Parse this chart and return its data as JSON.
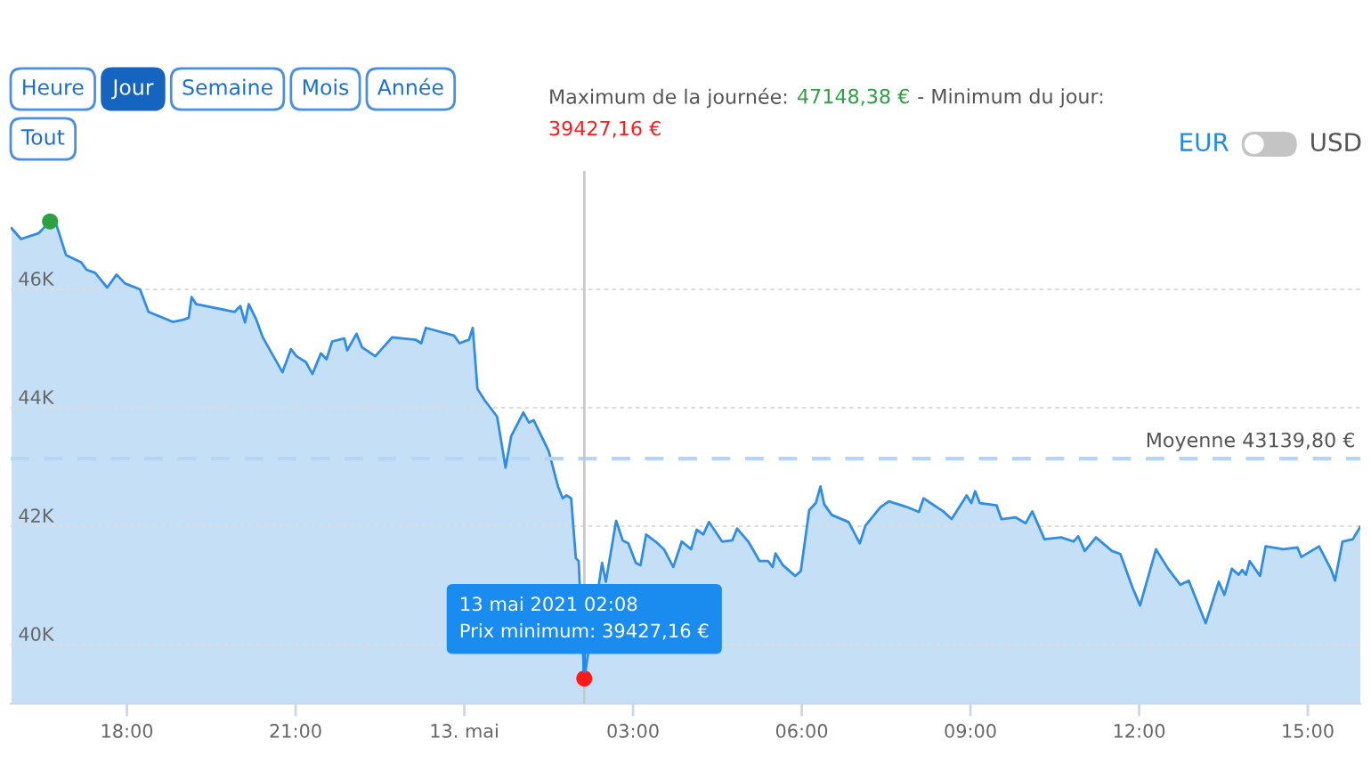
{
  "chart_data": {
    "type": "area",
    "annotations": [
      "Heure",
      "Jour",
      "Semaine",
      "Mois",
      "Année",
      "Tout",
      "Maximum de la journée:",
      "47148,38 €",
      "- Minimum du jour:",
      "39427,16 €",
      "EUR",
      "USD",
      {
        "text": "13 mai 2021 02:08\nPrix minimum: 39427,16 €",
        "x": "2021-05-13T02:08",
        "y": 39427.16
      }
    ],
    "xlim": [
      "2021-05-12T15:56",
      "2021-05-13T15:56"
    ],
    "xticks": [
      {
        "value": "2021-05-12T18:00",
        "label": "18:00"
      },
      {
        "value": "2021-05-12T21:00",
        "label": "21:00"
      },
      {
        "value": "2021-05-13T00:00",
        "label": "13. mai"
      },
      {
        "value": "2021-05-13T03:00",
        "label": "03:00"
      },
      {
        "value": "2021-05-13T06:00",
        "label": "06:00"
      },
      {
        "value": "2021-05-13T09:00",
        "label": "09:00"
      },
      {
        "value": "2021-05-13T12:00",
        "label": "12:00"
      },
      {
        "value": "2021-05-13T15:00",
        "label": "15:00"
      }
    ],
    "ylim": [
      39000,
      48000
    ],
    "yticks": [
      {
        "value": 40000,
        "label": "40K"
      },
      {
        "value": 42000,
        "label": "42K"
      },
      {
        "value": 44000,
        "label": "44K"
      },
      {
        "value": 46000,
        "label": "46K"
      }
    ],
    "grid": "y",
    "ref_lines": [
      {
        "axis": "y",
        "value": 43139.8,
        "label": "Moyenne 43139,80 €",
        "color": "#b5d5f7",
        "line_style": "dashed"
      },
      {
        "axis": "x",
        "value": "2021-05-13T02:08",
        "color": "#c8c8c8"
      }
    ],
    "series": [
      {
        "color": "#2f8de4",
        "x": [
          "2021-05-12T15:57",
          "2021-05-12T16:07",
          "2021-05-12T16:26",
          "2021-05-12T16:38",
          "2021-05-12T16:45",
          "2021-05-12T16:55",
          "2021-05-12T17:11",
          "2021-05-12T17:17",
          "2021-05-12T17:26",
          "2021-05-12T17:39",
          "2021-05-12T17:49",
          "2021-05-12T17:58",
          "2021-05-12T18:14",
          "2021-05-12T18:23",
          "2021-05-12T18:49",
          "2021-05-12T19:01",
          "2021-05-12T19:06",
          "2021-05-12T19:09",
          "2021-05-12T19:14",
          "2021-05-12T19:33",
          "2021-05-12T19:55",
          "2021-05-12T20:01",
          "2021-05-12T20:06",
          "2021-05-12T20:10",
          "2021-05-12T20:18",
          "2021-05-12T20:25",
          "2021-05-12T20:46",
          "2021-05-12T20:55",
          "2021-05-12T21:01",
          "2021-05-12T21:11",
          "2021-05-12T21:18",
          "2021-05-12T21:27",
          "2021-05-12T21:33",
          "2021-05-12T21:39",
          "2021-05-12T21:52",
          "2021-05-12T21:55",
          "2021-05-12T22:05",
          "2021-05-12T22:11",
          "2021-05-12T22:25",
          "2021-05-12T22:43",
          "2021-05-12T23:08",
          "2021-05-12T23:14",
          "2021-05-12T23:19",
          "2021-05-12T23:49",
          "2021-05-12T23:55",
          "2021-05-13T00:05",
          "2021-05-13T00:09",
          "2021-05-13T00:14",
          "2021-05-13T00:22",
          "2021-05-13T00:35",
          "2021-05-13T00:44",
          "2021-05-13T00:50",
          "2021-05-13T01:03",
          "2021-05-13T01:09",
          "2021-05-13T01:14",
          "2021-05-13T01:30",
          "2021-05-13T01:40",
          "2021-05-13T01:45",
          "2021-05-13T01:49",
          "2021-05-13T01:54",
          "2021-05-13T01:59",
          "2021-05-13T02:02",
          "2021-05-13T02:08",
          "2021-05-13T02:24",
          "2021-05-13T02:27",
          "2021-05-13T02:31",
          "2021-05-13T02:42",
          "2021-05-13T02:49",
          "2021-05-13T02:55",
          "2021-05-13T03:03",
          "2021-05-13T03:08",
          "2021-05-13T03:14",
          "2021-05-13T03:24",
          "2021-05-13T03:33",
          "2021-05-13T03:43",
          "2021-05-13T03:52",
          "2021-05-13T04:02",
          "2021-05-13T04:08",
          "2021-05-13T04:15",
          "2021-05-13T04:21",
          "2021-05-13T04:30",
          "2021-05-13T04:35",
          "2021-05-13T04:46",
          "2021-05-13T04:51",
          "2021-05-13T05:03",
          "2021-05-13T05:15",
          "2021-05-13T05:24",
          "2021-05-13T05:29",
          "2021-05-13T05:32",
          "2021-05-13T05:40",
          "2021-05-13T05:53",
          "2021-05-13T05:59",
          "2021-05-13T06:08",
          "2021-05-13T06:15",
          "2021-05-13T06:20",
          "2021-05-13T06:24",
          "2021-05-13T06:32",
          "2021-05-13T06:50",
          "2021-05-13T07:02",
          "2021-05-13T07:08",
          "2021-05-13T07:24",
          "2021-05-13T07:33",
          "2021-05-13T07:53",
          "2021-05-13T08:05",
          "2021-05-13T08:10",
          "2021-05-13T08:31",
          "2021-05-13T08:40",
          "2021-05-13T08:56",
          "2021-05-13T09:01",
          "2021-05-13T09:05",
          "2021-05-13T09:10",
          "2021-05-13T09:28",
          "2021-05-13T09:33",
          "2021-05-13T09:48",
          "2021-05-13T09:59",
          "2021-05-13T10:06",
          "2021-05-13T10:19",
          "2021-05-13T10:37",
          "2021-05-13T10:50",
          "2021-05-13T10:55",
          "2021-05-13T11:02",
          "2021-05-13T11:14",
          "2021-05-13T11:31",
          "2021-05-13T11:40",
          "2021-05-13T11:53",
          "2021-05-13T12:01",
          "2021-05-13T12:18",
          "2021-05-13T12:31",
          "2021-05-13T12:44",
          "2021-05-13T12:53",
          "2021-05-13T13:11",
          "2021-05-13T13:25",
          "2021-05-13T13:31",
          "2021-05-13T13:39",
          "2021-05-13T13:46",
          "2021-05-13T13:50",
          "2021-05-13T13:54",
          "2021-05-13T13:58",
          "2021-05-13T14:09",
          "2021-05-13T14:15",
          "2021-05-13T14:34",
          "2021-05-13T14:49",
          "2021-05-13T14:53",
          "2021-05-13T15:12",
          "2021-05-13T15:25",
          "2021-05-13T15:29",
          "2021-05-13T15:37",
          "2021-05-13T15:48",
          "2021-05-13T15:56"
        ],
        "values": [
          47030,
          46850,
          46950,
          47148.38,
          47080,
          46580,
          46460,
          46330,
          46280,
          46030,
          46250,
          46100,
          46000,
          45620,
          45450,
          45490,
          45520,
          45870,
          45750,
          45690,
          45620,
          45720,
          45440,
          45750,
          45490,
          45190,
          44600,
          44990,
          44870,
          44770,
          44570,
          44920,
          44820,
          45120,
          45170,
          44970,
          45250,
          45020,
          44870,
          45190,
          45150,
          45090,
          45350,
          45220,
          45090,
          45150,
          45350,
          44320,
          44120,
          43850,
          42990,
          43520,
          43920,
          43750,
          43790,
          43270,
          42670,
          42470,
          42520,
          42470,
          41460,
          41410,
          39427.16,
          41060,
          41380,
          41060,
          42090,
          41760,
          41710,
          41380,
          41340,
          41860,
          41740,
          41610,
          41310,
          41740,
          41610,
          41940,
          41860,
          42070,
          41860,
          41740,
          41760,
          41960,
          41740,
          41410,
          41410,
          41310,
          41540,
          41340,
          41160,
          41240,
          42270,
          42390,
          42670,
          42370,
          42190,
          42070,
          41710,
          42010,
          42320,
          42420,
          42320,
          42240,
          42470,
          42250,
          42120,
          42520,
          42390,
          42590,
          42390,
          42350,
          42120,
          42150,
          42050,
          42250,
          41780,
          41810,
          41740,
          41830,
          41580,
          41810,
          41580,
          41530,
          40960,
          40660,
          41610,
          41280,
          41010,
          41080,
          40360,
          41060,
          40840,
          41280,
          41180,
          41260,
          41180,
          41410,
          41160,
          41660,
          41610,
          41640,
          41480,
          41660,
          41260,
          41080,
          41740,
          41780,
          41990
        ]
      },
      {
        "type": "scatter",
        "color": "#2ea043",
        "marker": "circle",
        "x": [
          "2021-05-12T16:38"
        ],
        "values": [
          47148.38
        ]
      },
      {
        "type": "scatter",
        "color": "#ff1a1a",
        "marker": "circle",
        "x": [
          "2021-05-13T02:08"
        ],
        "values": [
          39427.16
        ]
      }
    ]
  }
}
